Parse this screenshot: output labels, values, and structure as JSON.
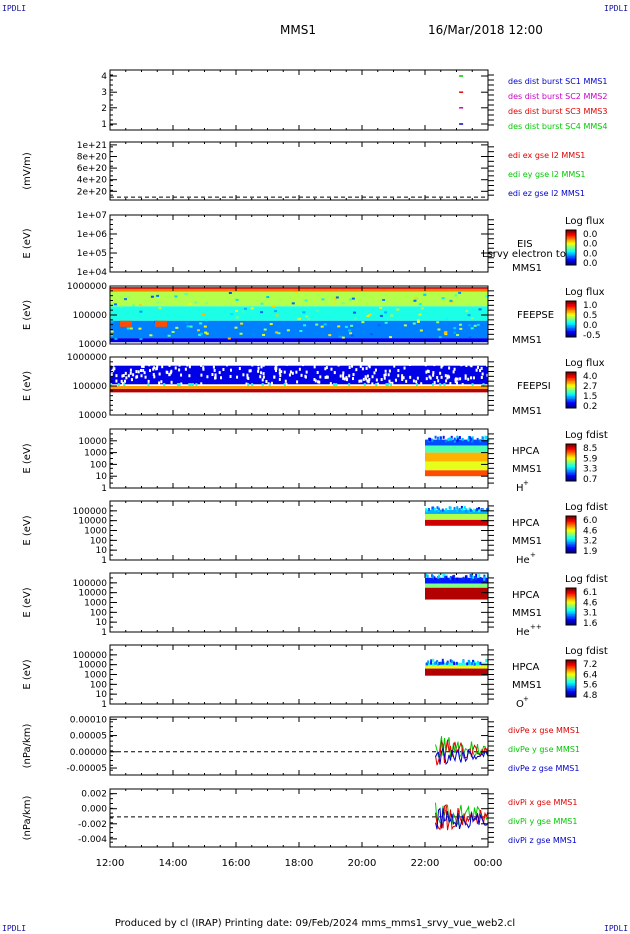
{
  "corner_label": "IPDLI",
  "header": {
    "mission": "MMS1",
    "datetime": "16/Mar/2018 12:00"
  },
  "footer": {
    "text": "Produced by cl (IRAP)   Printing date: 09/Feb/2024   mms_mms1_srvy_vue_web2.cl"
  },
  "chart_data": {
    "type": "multi-panel-timeseries",
    "x_axis": {
      "range": [
        "12:00",
        "00:00"
      ],
      "ticks": [
        "12:00",
        "14:00",
        "16:00",
        "18:00",
        "20:00",
        "22:00",
        "00:00"
      ]
    },
    "panels": [
      {
        "id": "p1",
        "type": "availability",
        "yticks": [
          "1",
          "2",
          "3",
          "4"
        ],
        "series": [
          {
            "name": "des dist burst SC1 MMS1",
            "color": "#0000c8",
            "y": 1
          },
          {
            "name": "des dist burst SC2 MMS2",
            "color": "#c800c8",
            "y": 2
          },
          {
            "name": "des dist burst SC3 MMS3",
            "color": "#e00000",
            "y": 3
          },
          {
            "name": "des dist burst SC4 MMS4",
            "color": "#00c800",
            "y": 4
          }
        ],
        "burst_x": [
          "23:05",
          "23:10"
        ]
      },
      {
        "id": "p2",
        "type": "line",
        "ylabel": "(mV/m)",
        "yticks": [
          "2e+20",
          "4e+20",
          "6e+20",
          "8e+20",
          "1e+21"
        ],
        "series": [
          {
            "name": "edi ex gse l2 MMS1",
            "color": "#e00000"
          },
          {
            "name": "edi ey gse l2 MMS1",
            "color": "#00c800"
          },
          {
            "name": "edi ez gse l2 MMS1",
            "color": "#0000c8"
          }
        ]
      },
      {
        "id": "p3",
        "type": "spectrogram",
        "ylabel": "E (eV)",
        "yticks": [
          "1e+04",
          "1e+05",
          "1e+06",
          "1e+07"
        ],
        "instrument": "EIS",
        "craft": "MMS1",
        "overlay_text": "Lsrvy electron to",
        "colorbar": {
          "title": "Log flux",
          "ticks": [
            "0.0",
            "0.0",
            "0.0",
            "0.0"
          ]
        }
      },
      {
        "id": "p4",
        "type": "spectrogram",
        "ylabel": "E (eV)",
        "yticks": [
          "10000",
          "100000",
          "1000000"
        ],
        "instrument": "FEEPSE",
        "craft": "MMS1",
        "colorbar": {
          "title": "Log flux",
          "ticks": [
            "1.0",
            "0.5",
            "0.0",
            "-0.5"
          ]
        }
      },
      {
        "id": "p5",
        "type": "spectrogram",
        "ylabel": "E (eV)",
        "yticks": [
          "10000",
          "100000",
          "1000000"
        ],
        "instrument": "FEEPSI",
        "craft": "MMS1",
        "colorbar": {
          "title": "Log flux",
          "ticks": [
            "4.0",
            "2.7",
            "1.5",
            "0.2"
          ]
        }
      },
      {
        "id": "p6",
        "type": "spectrogram",
        "ylabel": "E (eV)",
        "yticks": [
          "1",
          "10",
          "100",
          "1000",
          "10000"
        ],
        "instrument": "HPCA",
        "craft": "MMS1",
        "species": "H",
        "charge": "+",
        "colorbar": {
          "title": "Log fdist",
          "ticks": [
            "8.5",
            "5.9",
            "3.3",
            "0.7"
          ]
        }
      },
      {
        "id": "p7",
        "type": "spectrogram",
        "ylabel": "E (eV)",
        "yticks": [
          "1",
          "10",
          "100",
          "1000",
          "10000",
          "100000"
        ],
        "instrument": "HPCA",
        "craft": "MMS1",
        "species": "He",
        "charge": "+",
        "colorbar": {
          "title": "Log fdist",
          "ticks": [
            "6.0",
            "4.6",
            "3.2",
            "1.9"
          ]
        }
      },
      {
        "id": "p8",
        "type": "spectrogram",
        "ylabel": "E (eV)",
        "yticks": [
          "1",
          "10",
          "100",
          "1000",
          "10000",
          "100000"
        ],
        "instrument": "HPCA",
        "craft": "MMS1",
        "species": "He",
        "charge": "++",
        "colorbar": {
          "title": "Log fdist",
          "ticks": [
            "6.1",
            "4.6",
            "3.1",
            "1.6"
          ]
        }
      },
      {
        "id": "p9",
        "type": "spectrogram",
        "ylabel": "E (eV)",
        "yticks": [
          "1",
          "10",
          "100",
          "1000",
          "10000",
          "100000"
        ],
        "instrument": "HPCA",
        "craft": "MMS1",
        "species": "O",
        "charge": "+",
        "colorbar": {
          "title": "Log fdist",
          "ticks": [
            "7.2",
            "6.4",
            "5.6",
            "4.8"
          ]
        }
      },
      {
        "id": "p10",
        "type": "line",
        "ylabel": "(nPa/km)",
        "yticks": [
          "-0.00005",
          "0.00000",
          "0.00005",
          "0.00010"
        ],
        "series": [
          {
            "name": "divPe x gse MMS1",
            "color": "#e00000"
          },
          {
            "name": "divPe y gse MMS1",
            "color": "#00c800"
          },
          {
            "name": "divPe z gse MMS1",
            "color": "#0000c8"
          }
        ]
      },
      {
        "id": "p11",
        "type": "line",
        "ylabel": "(nPa/km)",
        "yticks": [
          "-0.004",
          "-0.002",
          "0.000",
          "0.002"
        ],
        "series": [
          {
            "name": "divPi x gse MMS1",
            "color": "#e00000"
          },
          {
            "name": "divPi y gse MMS1",
            "color": "#00c800"
          },
          {
            "name": "divPi z gse MMS1",
            "color": "#0000c8"
          }
        ]
      }
    ]
  }
}
